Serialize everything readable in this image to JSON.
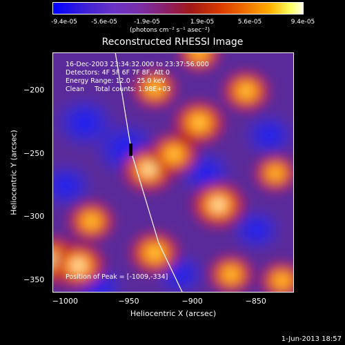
{
  "colorbar": {
    "ticks": [
      "-9.4e-05",
      "-5.6e-05",
      "-1.9e-05",
      "1.9e-05",
      "5.6e-05",
      "9.4e-05"
    ],
    "unit": "(photons cm⁻² s⁻¹ asec⁻²)"
  },
  "chart_data": {
    "type": "heatmap",
    "title": "Reconstructed RHESSI Image",
    "xlabel": "Heliocentric X (arcsec)",
    "ylabel": "Heliocentric Y (arcsec)",
    "xlim": [
      -1010,
      -820
    ],
    "ylim": [
      -360,
      -170
    ],
    "xticks": [
      -1000,
      -950,
      -900,
      -850
    ],
    "yticks": [
      -200,
      -250,
      -300,
      -350
    ],
    "colorbar_range": [
      -9.4e-05,
      9.4e-05
    ],
    "annotations": {
      "line1": "16-Dec-2003 23:34:32.000 to 23:37:56.000",
      "line2": "Detectors: 4F 5F 6F 7F 8F, Att 0",
      "line3": "Energy Range: 12.0 - 25.0 keV",
      "line4": "Clean     Total counts: 1.98E+03",
      "peak": "Position of Peak = [-1009,-334]"
    },
    "limb_curve": [
      [
        -961,
        -170
      ],
      [
        -948,
        -250
      ],
      [
        -927,
        -320
      ],
      [
        -908,
        -360
      ]
    ],
    "hot_regions": [
      [
        -1009,
        -334,
        1.0
      ],
      [
        -990,
        -338,
        0.9
      ],
      [
        -935,
        -262,
        0.85
      ],
      [
        -895,
        -225,
        0.8
      ],
      [
        -880,
        -290,
        0.9
      ],
      [
        -980,
        -303,
        0.6
      ],
      [
        -930,
        -328,
        0.75
      ],
      [
        -858,
        -200,
        0.65
      ],
      [
        -915,
        -250,
        0.7
      ],
      [
        -930,
        -198,
        0.55
      ],
      [
        -830,
        -350,
        0.5
      ],
      [
        -870,
        -345,
        0.55
      ],
      [
        -895,
        -170,
        0.45
      ],
      [
        -835,
        -265,
        0.45
      ]
    ],
    "cold_regions": [
      [
        -985,
        -225,
        0.8
      ],
      [
        -952,
        -246,
        1.0
      ],
      [
        -890,
        -265,
        0.55
      ],
      [
        -840,
        -235,
        0.45
      ],
      [
        -975,
        -355,
        0.5
      ],
      [
        -910,
        -345,
        0.4
      ],
      [
        -850,
        -310,
        0.4
      ],
      [
        -1000,
        -275,
        0.5
      ]
    ]
  },
  "footer": "1-Jun-2013 18:57"
}
